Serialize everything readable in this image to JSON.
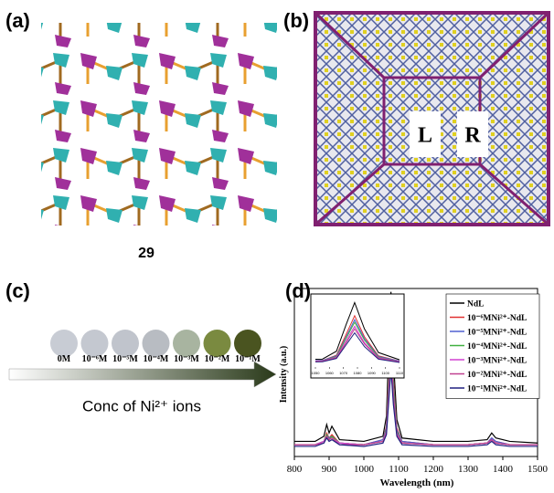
{
  "panels": {
    "a": {
      "label": "(a)",
      "caption": "29"
    },
    "b": {
      "label": "(b)",
      "left": "L",
      "right": "R"
    },
    "c": {
      "label": "(c)",
      "samples": [
        "0M",
        "10⁻⁶M",
        "10⁻⁵M",
        "10⁻⁴M",
        "10⁻³M",
        "10⁻²M",
        "10⁻¹M"
      ],
      "axis_label": "Conc of Ni²⁺ ions"
    },
    "d": {
      "label": "(d)"
    }
  },
  "chart_data": {
    "type": "line",
    "xlabel": "Wavelength (nm)",
    "ylabel": "Intensity (a.u.)",
    "x": [
      800,
      860,
      885,
      893,
      900,
      908,
      930,
      1000,
      1055,
      1065,
      1072,
      1078,
      1085,
      1095,
      1110,
      1200,
      1300,
      1355,
      1368,
      1380,
      1420,
      1500
    ],
    "xlim": [
      800,
      1500
    ],
    "xticks": [
      800,
      900,
      1000,
      1100,
      1200,
      1300,
      1400,
      1500
    ],
    "ylim": [
      0,
      100
    ],
    "legend": "upper right",
    "series": [
      {
        "name": "NdL",
        "color": "#000000",
        "values": [
          9,
          9,
          12,
          19,
          14,
          18,
          10,
          9,
          12,
          24,
          65,
          98,
          58,
          22,
          11,
          9,
          9,
          10,
          14,
          11,
          9,
          8
        ]
      },
      {
        "name": "10⁻⁶MNi²⁺-NdL",
        "color": "#e03030",
        "values": [
          7,
          7,
          9,
          14,
          11,
          13,
          8,
          7,
          10,
          18,
          50,
          78,
          46,
          17,
          9,
          7,
          7,
          8,
          11,
          9,
          7,
          7
        ]
      },
      {
        "name": "10⁻⁵MNi²⁺-NdL",
        "color": "#5060d0",
        "values": [
          7,
          7,
          9,
          13,
          11,
          12,
          8,
          7,
          10,
          17,
          46,
          72,
          43,
          16,
          9,
          7,
          7,
          8,
          11,
          9,
          7,
          7
        ]
      },
      {
        "name": "10⁻⁴MNi²⁺-NdL",
        "color": "#40b040",
        "values": [
          7,
          7,
          9,
          13,
          10,
          12,
          8,
          7,
          9,
          16,
          44,
          68,
          41,
          15,
          8,
          7,
          7,
          8,
          10,
          8,
          7,
          7
        ]
      },
      {
        "name": "10⁻³MNi²⁺-NdL",
        "color": "#d040d0",
        "values": [
          7,
          7,
          9,
          12,
          10,
          11,
          8,
          7,
          9,
          15,
          40,
          62,
          37,
          14,
          8,
          7,
          7,
          8,
          10,
          8,
          7,
          7
        ]
      },
      {
        "name": "10⁻²MNi²⁺-NdL",
        "color": "#c04090",
        "values": [
          7,
          7,
          8,
          12,
          10,
          11,
          7,
          7,
          9,
          14,
          37,
          58,
          35,
          13,
          8,
          7,
          7,
          8,
          10,
          8,
          7,
          7
        ]
      },
      {
        "name": "10⁻¹MNi²⁺-NdL",
        "color": "#202080",
        "values": [
          6,
          6,
          8,
          11,
          9,
          10,
          7,
          6,
          8,
          13,
          34,
          52,
          31,
          12,
          7,
          6,
          6,
          7,
          9,
          7,
          6,
          6
        ]
      }
    ],
    "inset": {
      "xlim": [
        1050,
        1110
      ],
      "xticks": [
        1050,
        1060,
        1070,
        1080,
        1090,
        1100,
        1110
      ],
      "ylim": [
        0,
        100
      ]
    }
  }
}
